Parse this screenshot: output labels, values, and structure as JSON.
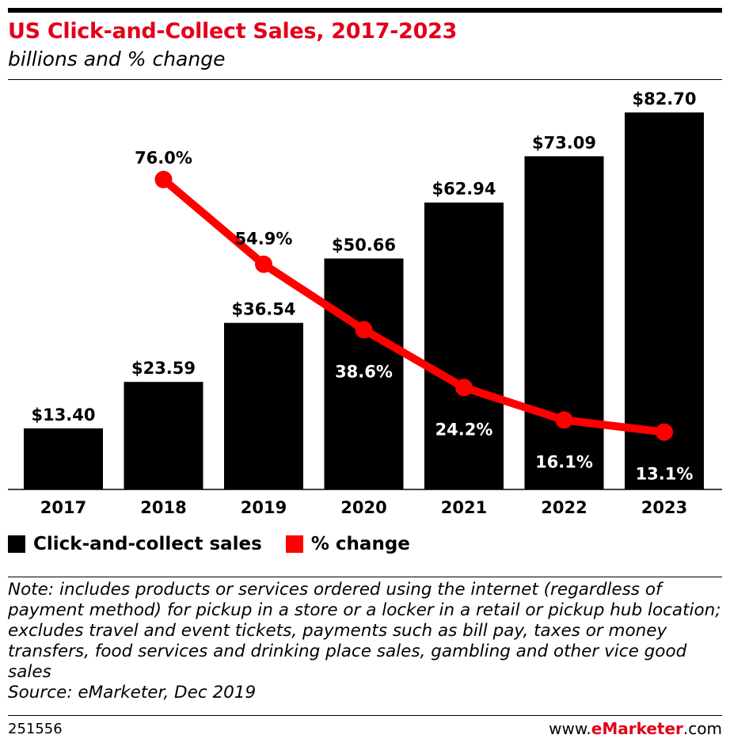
{
  "header": {
    "title": "US Click-and-Collect Sales, 2017-2023",
    "subtitle": "billions and % change"
  },
  "chart_data": {
    "type": "bar",
    "title": "US Click-and-Collect Sales, 2017-2023",
    "subtitle": "billions and % change",
    "categories": [
      "2017",
      "2018",
      "2019",
      "2020",
      "2021",
      "2022",
      "2023"
    ],
    "series": [
      {
        "name": "Click-and-collect sales",
        "type": "bar",
        "color": "#000000",
        "values": [
          13.4,
          23.59,
          36.54,
          50.66,
          62.94,
          73.09,
          82.7
        ],
        "labels": [
          "$13.40",
          "$23.59",
          "$36.54",
          "$50.66",
          "$62.94",
          "$73.09",
          "$82.70"
        ]
      },
      {
        "name": "% change",
        "type": "line",
        "color": "#ff0000",
        "values": [
          null,
          76.0,
          54.9,
          38.6,
          24.2,
          16.1,
          13.1
        ],
        "labels": [
          "",
          "76.0%",
          "54.9%",
          "38.6%",
          "24.2%",
          "16.1%",
          "13.1%"
        ]
      }
    ],
    "grid": false,
    "legend": "bottom-left"
  },
  "note": "Note: includes products or services ordered using the internet (regardless of payment method) for pickup in a store or a locker in a retail or pickup hub location; excludes travel and event tickets, payments such as bill pay, taxes or money transfers, food services and drinking place sales, gambling and other vice good sales",
  "source": "Source: eMarketer, Dec 2019",
  "footer": {
    "id": "251556",
    "brand_pre": "www.",
    "brand_mid": "eMarketer",
    "brand_post": ".com"
  }
}
